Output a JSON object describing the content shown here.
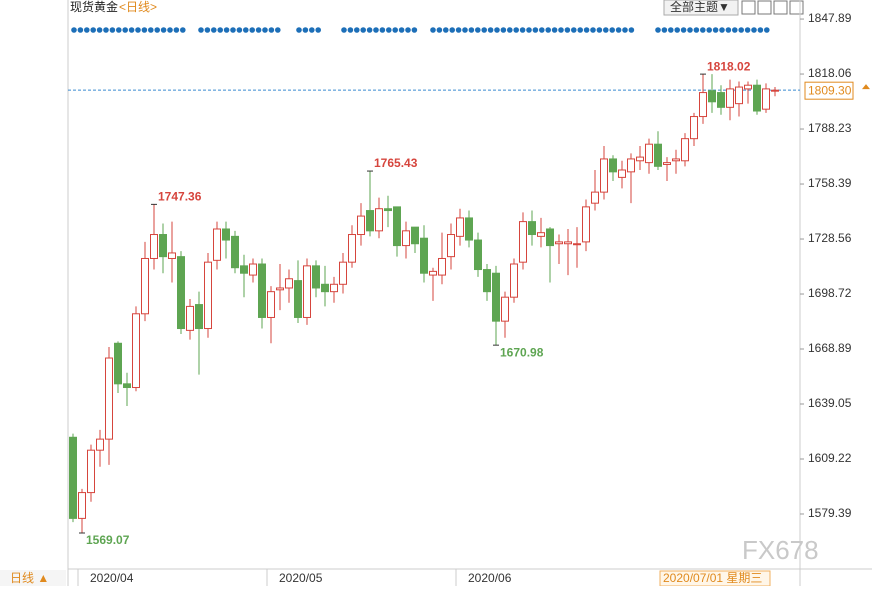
{
  "chart_data": {
    "type": "candlestick",
    "title": "现货黄金",
    "period": "<日线>",
    "theme_menu": "全部主题▼",
    "bottom_period": "日线 ▲",
    "cursor_label": "2020/07/01 星期三",
    "watermark": "FX678",
    "categories": [
      null,
      "2020/04",
      null,
      null,
      null,
      null,
      null,
      null,
      null,
      null,
      null,
      null,
      null,
      null,
      null,
      null,
      null,
      null,
      null,
      null,
      null,
      null,
      "2020/05",
      null,
      null,
      null,
      null,
      null,
      null,
      null,
      null,
      null,
      null,
      null,
      null,
      null,
      null,
      null,
      null,
      null,
      null,
      null,
      null,
      "2020/06",
      null,
      null,
      null,
      null,
      null,
      null,
      null,
      null,
      null,
      null,
      null,
      null,
      null,
      null,
      null,
      null,
      null,
      null,
      null,
      null,
      null,
      null,
      null,
      null,
      null,
      null,
      null,
      null,
      null,
      null,
      null,
      null,
      null,
      null,
      null
    ],
    "open": [
      1621,
      1577,
      1591,
      1614,
      1620,
      1672,
      1650,
      1648,
      1688,
      1718,
      1731,
      1718,
      1719,
      1679,
      1693,
      1680,
      1717,
      1734,
      1730,
      1714,
      1709,
      1715,
      1686,
      1701,
      1702,
      1706,
      1686,
      1714,
      1704,
      1700,
      1704,
      1716,
      1731,
      1744,
      1733,
      1745,
      1746,
      1725,
      1735,
      1729,
      1709,
      1709,
      1719,
      1730,
      1740,
      1728,
      1712,
      1710,
      1684,
      1697,
      1716,
      1738,
      1730,
      1734,
      1726,
      1726,
      1726,
      1727,
      1748,
      1754,
      1772,
      1762,
      1765,
      1771,
      1770,
      1780,
      1769,
      1771,
      1771,
      1783,
      1795,
      1809,
      1808,
      1800,
      1802,
      1810,
      1812,
      1799,
      1809
    ],
    "high": [
      1623,
      1593,
      1617,
      1625,
      1670,
      1673,
      1656,
      1692,
      1727,
      1747.36,
      1737,
      1738,
      1722,
      1696,
      1700,
      1721,
      1738,
      1738,
      1733,
      1720,
      1718,
      1718,
      1703,
      1715,
      1712,
      1717,
      1718,
      1717,
      1714,
      1708,
      1721,
      1736,
      1748,
      1765.43,
      1751,
      1752,
      1746,
      1738,
      1735,
      1736,
      1713,
      1732,
      1737,
      1745,
      1744,
      1732,
      1715,
      1714,
      1700,
      1718,
      1743,
      1744,
      1740,
      1735,
      1731,
      1734,
      1735,
      1750,
      1766,
      1779,
      1774,
      1771,
      1775,
      1779,
      1783,
      1787,
      1773,
      1777,
      1786,
      1797,
      1818.02,
      1818,
      1812,
      1815,
      1814,
      1814,
      1815,
      1813,
      1811
    ],
    "low": [
      1575,
      1569.07,
      1586,
      1605,
      1606,
      1645,
      1638,
      1646,
      1684,
      1712,
      1710,
      1705,
      1677,
      1674,
      1655,
      1675,
      1712,
      1718,
      1710,
      1697,
      1705,
      1680,
      1672,
      1690,
      1694,
      1683,
      1682,
      1697,
      1692,
      1694,
      1699,
      1713,
      1725,
      1730,
      1729,
      1735,
      1719,
      1718,
      1721,
      1705,
      1695,
      1704,
      1712,
      1725,
      1724,
      1708,
      1695,
      1670.98,
      1675,
      1694,
      1712,
      1725,
      1724,
      1705,
      1715,
      1709,
      1713,
      1722,
      1744,
      1750,
      1760,
      1756,
      1748,
      1766,
      1764,
      1766,
      1760,
      1764,
      1768,
      1779,
      1791,
      1797,
      1796,
      1793,
      1795,
      1802,
      1796,
      1797,
      1806
    ],
    "close": [
      1577,
      1591,
      1614,
      1620,
      1664,
      1650,
      1648,
      1688,
      1718,
      1731,
      1719,
      1721,
      1680,
      1692,
      1680,
      1716,
      1734,
      1728,
      1713,
      1710,
      1715,
      1686,
      1700,
      1702,
      1707,
      1686,
      1714,
      1702,
      1700,
      1704,
      1716,
      1731,
      1741,
      1733,
      1745,
      1744,
      1725,
      1733,
      1726,
      1710,
      1711,
      1718,
      1731,
      1740,
      1728,
      1712,
      1700,
      1684,
      1697,
      1715,
      1738,
      1731,
      1732,
      1725,
      1727,
      1727,
      1726,
      1746,
      1754,
      1772,
      1765,
      1766,
      1772,
      1773,
      1780,
      1768,
      1770,
      1772,
      1783,
      1795,
      1808,
      1803,
      1800,
      1810,
      1811,
      1812,
      1798,
      1810,
      1809.3
    ],
    "current_price": {
      "value": 1809.3,
      "label": "1809.30"
    },
    "up_color": "#d6453d",
    "down_color": "#5ea552",
    "ylim": [
      1552.8,
      1852.8
    ],
    "yticks": [
      1847.89,
      1818.06,
      1788.23,
      1758.39,
      1728.56,
      1698.72,
      1668.89,
      1639.05,
      1609.22,
      1579.39
    ]
  }
}
